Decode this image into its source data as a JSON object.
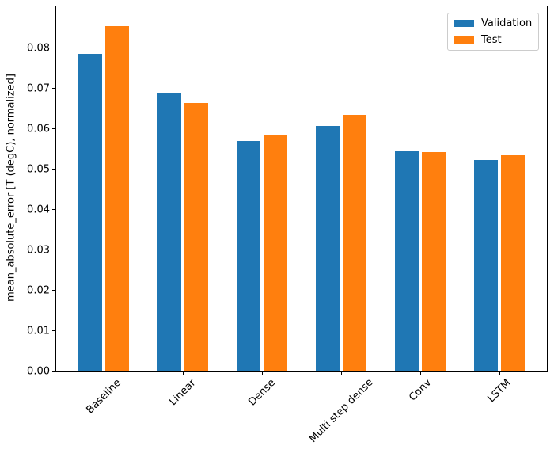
{
  "chart_data": {
    "type": "bar",
    "title": "",
    "xlabel": "",
    "ylabel": "mean_absolute_error [T (degC), normalized]",
    "categories": [
      "Baseline",
      "Linear",
      "Dense",
      "Multi step dense",
      "Conv",
      "LSTM"
    ],
    "series": [
      {
        "name": "Validation",
        "color": "#1f77b4",
        "values": [
          0.0785,
          0.0688,
          0.0571,
          0.0607,
          0.0545,
          0.0524
        ]
      },
      {
        "name": "Test",
        "color": "#ff7f0e",
        "values": [
          0.0855,
          0.0664,
          0.0583,
          0.0634,
          0.0543,
          0.0534
        ]
      }
    ],
    "ylim": [
      0,
      0.0903
    ],
    "yticks": [
      0.0,
      0.01,
      0.02,
      0.03,
      0.04,
      0.05,
      0.06,
      0.07,
      0.08
    ],
    "ytick_labels": [
      "0.00",
      "0.01",
      "0.02",
      "0.03",
      "0.04",
      "0.05",
      "0.06",
      "0.07",
      "0.08"
    ],
    "x_tick_rotation": 45,
    "grid": false,
    "bar_width_fraction": 0.3,
    "bar_offset_fraction": 0.17,
    "legend": {
      "position": "upper right",
      "entries": [
        {
          "label": "Validation",
          "color": "#1f77b4"
        },
        {
          "label": "Test",
          "color": "#ff7f0e"
        }
      ]
    }
  }
}
